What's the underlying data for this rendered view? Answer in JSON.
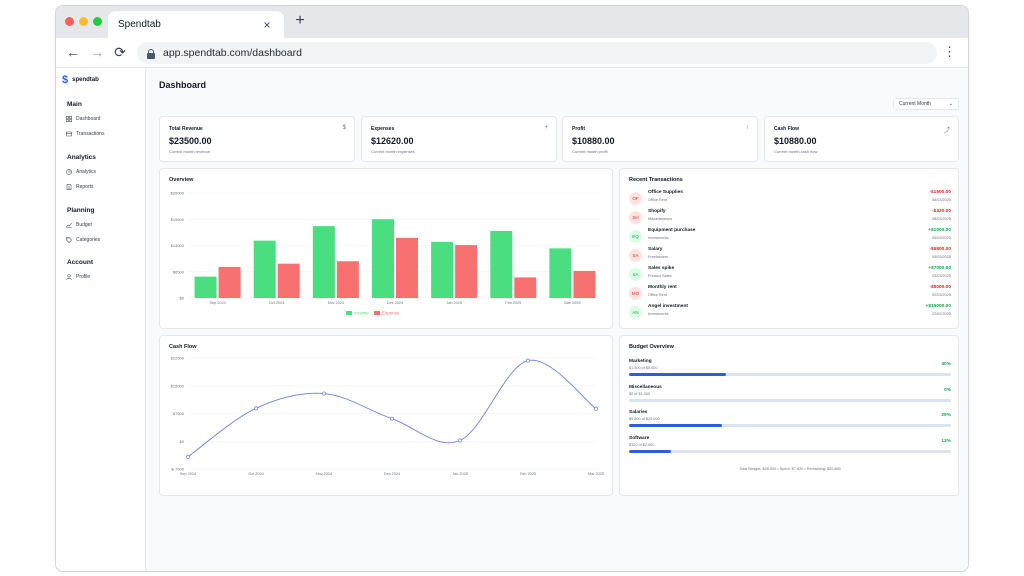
{
  "browser": {
    "tab_title": "Spendtab",
    "tab_close_icon": "×",
    "new_tab_icon": "+",
    "url": "app.spendtab.com/dashboard",
    "back_icon": "←",
    "forward_icon": "→",
    "reload_icon": "⟳",
    "menu_icon": "⋮"
  },
  "sidebar": {
    "logo_icon": "$",
    "brand": "spendtab",
    "sections": [
      {
        "title": "Main",
        "items": [
          {
            "label": "Dashboard",
            "icon": "dashboard-icon"
          },
          {
            "label": "Transactions",
            "icon": "card-icon"
          }
        ]
      },
      {
        "title": "Analytics",
        "items": [
          {
            "label": "Analytics",
            "icon": "pie-chart-icon"
          },
          {
            "label": "Reports",
            "icon": "document-icon"
          }
        ]
      },
      {
        "title": "Planning",
        "items": [
          {
            "label": "Budget",
            "icon": "trend-icon"
          },
          {
            "label": "Categories",
            "icon": "tag-icon"
          }
        ]
      },
      {
        "title": "Account",
        "items": [
          {
            "label": "Profile",
            "icon": "user-icon"
          }
        ]
      }
    ]
  },
  "header": {
    "title": "Dashboard",
    "period": "Current Month",
    "period_chevron": "⌄"
  },
  "kpis": [
    {
      "title": "Total Revenue",
      "value": "$23500.00",
      "sub": "Current month revenue",
      "icon": "$"
    },
    {
      "title": "Expenses",
      "value": "$12620.00",
      "sub": "Current month expenses",
      "icon": "+"
    },
    {
      "title": "Profit",
      "value": "$10880.00",
      "sub": "Current month profit",
      "icon": "↑"
    },
    {
      "title": "Cash Flow",
      "value": "$10880.00",
      "sub": "Current month cash flow",
      "icon": "⤴"
    }
  ],
  "overview": {
    "title": "Overview"
  },
  "cashflow": {
    "title": "Cash Flow"
  },
  "transactions": {
    "title": "Recent Transactions",
    "items": [
      {
        "initials": "OF",
        "name": "Office Supplies",
        "category": "Office Rent",
        "amount": "-$1500.00",
        "date": "08/03/2025",
        "type": "expense"
      },
      {
        "initials": "SH",
        "name": "Shopify",
        "category": "Miscellaneous",
        "amount": "-$320.00",
        "date": "08/03/2025",
        "type": "expense"
      },
      {
        "initials": "EQ",
        "name": "Equipment purchase",
        "category": "Investments",
        "amount": "+$1000.00",
        "date": "05/03/2025",
        "type": "income"
      },
      {
        "initials": "SA",
        "name": "Salary",
        "category": "Freelancers",
        "amount": "-$5800.00",
        "date": "05/03/2025",
        "type": "expense"
      },
      {
        "initials": "SA",
        "name": "Sales spike",
        "category": "Product Sales",
        "amount": "+$7000.00",
        "date": "03/03/2025",
        "type": "income"
      },
      {
        "initials": "MO",
        "name": "Monthly rent",
        "category": "Office Rent",
        "amount": "-$5000.00",
        "date": "02/03/2025",
        "type": "expense"
      },
      {
        "initials": "AN",
        "name": "Angel investment",
        "category": "Investments",
        "amount": "+$15000.00",
        "date": "22/02/2025",
        "type": "income"
      }
    ]
  },
  "budget": {
    "title": "Budget Overview",
    "items": [
      {
        "name": "Marketing",
        "sub": "$1,500 of $5,000",
        "pct_label": "30%",
        "progress": 0.3
      },
      {
        "name": "Miscellaneous",
        "sub": "$0 of $1,000",
        "pct_label": "0%",
        "progress": 0.0
      },
      {
        "name": "Salaries",
        "sub": "$5,800 of $20,000",
        "pct_label": "29%",
        "progress": 0.29
      },
      {
        "name": "Software",
        "sub": "$320 of $2,500",
        "pct_label": "13%",
        "progress": 0.13
      }
    ],
    "total": "Total Budget: $28,500 • Spent: $7,620 • Remaining: $20,880"
  },
  "colors": {
    "income": "#4ade80",
    "expense": "#f87171",
    "line": "#6b7fdc",
    "accent": "#2563eb",
    "progress": "#2d5fd4",
    "green_text": "#16a34a",
    "red_text": "#dc2626"
  },
  "chart_data": [
    {
      "type": "bar",
      "title": "Overview",
      "categories": [
        "Sep 2024",
        "Oct 2024",
        "Nov 2024",
        "Dec 2024",
        "Jan 2025",
        "Feb 2025",
        "Mar 2025"
      ],
      "series": [
        {
          "name": "Income",
          "values": [
            5300,
            14200,
            17800,
            19500,
            13900,
            16600,
            12300
          ]
        },
        {
          "name": "Expense",
          "values": [
            7700,
            8500,
            9100,
            14900,
            13100,
            5100,
            6700
          ]
        }
      ],
      "yticks": [
        "$0",
        "$6500",
        "$13000",
        "$19500",
        "$26000"
      ],
      "ylim": [
        0,
        26000
      ],
      "legend": "bottom"
    },
    {
      "type": "line",
      "title": "Cash Flow",
      "categories": [
        "Sep 2024",
        "Oct 2024",
        "Nov 2024",
        "Dec 2024",
        "Jan 2025",
        "Feb 2025",
        "Mar 2025"
      ],
      "series": [
        {
          "name": "",
          "values": [
            -4200,
            8900,
            12900,
            6100,
            200,
            21800,
            8800
          ]
        }
      ],
      "yticks": [
        "$-7500",
        "$0",
        "$7500",
        "$15000",
        "$22500"
      ],
      "ylim": [
        -7500,
        22500
      ]
    }
  ]
}
